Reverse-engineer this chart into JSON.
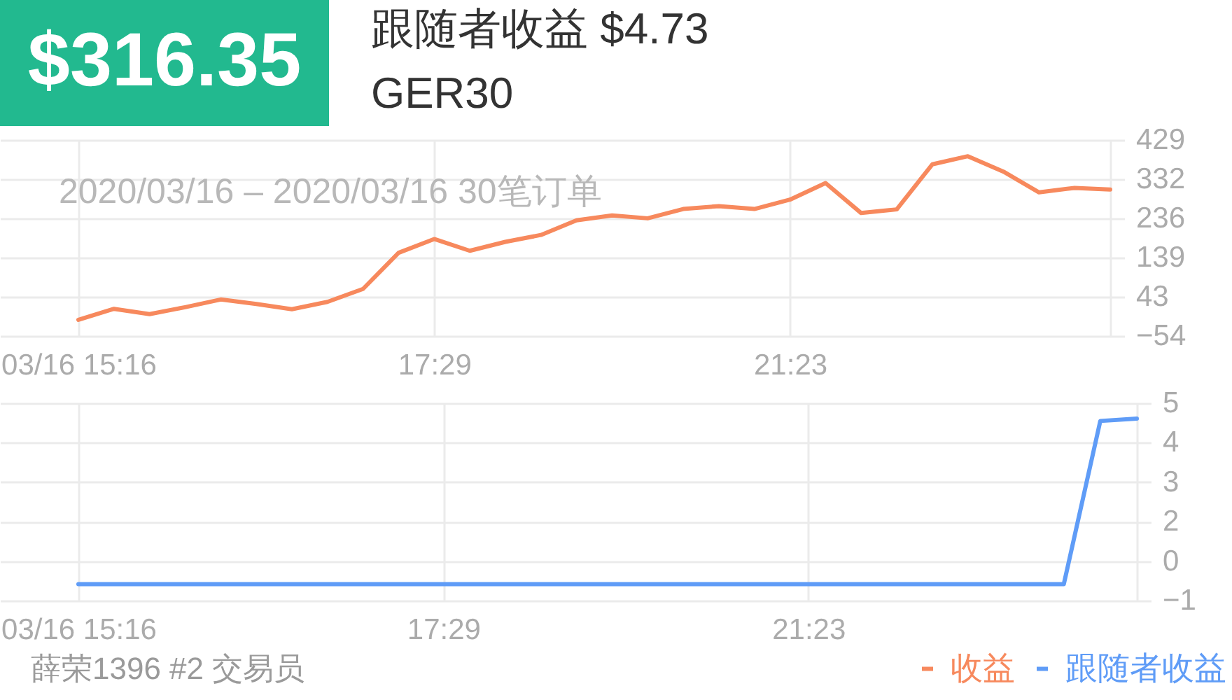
{
  "chart_data": [
    {
      "type": "other",
      "annotations": [
        "$316.35",
        "跟随者收益 $4.73",
        "GER30"
      ]
    },
    {
      "type": "line",
      "categories": [
        "03/16 15:16",
        null,
        null,
        null,
        null,
        null,
        null,
        null,
        null,
        null,
        "17:29",
        null,
        null,
        null,
        null,
        null,
        null,
        null,
        null,
        null,
        "21:23",
        null,
        null,
        null,
        null,
        null,
        null,
        null,
        null,
        null
      ],
      "series": [
        {
          "name": "收益",
          "color": "#f7895d",
          "values": [
            -14,
            13,
            0,
            17,
            36,
            25,
            12,
            30,
            62,
            151,
            185,
            156,
            178,
            195,
            231,
            243,
            236,
            259,
            266,
            259,
            282,
            323,
            249,
            258,
            369,
            389,
            351,
            300,
            311,
            307
          ]
        }
      ],
      "ylim": [
        -54,
        429
      ],
      "yticks": [
        -54,
        43,
        139,
        236,
        332,
        429
      ],
      "grid": true,
      "annotations": [
        "2020/03/16 – 2020/03/16 30笔订单"
      ]
    },
    {
      "type": "line",
      "categories": [
        "03/16 15:16",
        null,
        null,
        null,
        null,
        null,
        null,
        null,
        null,
        null,
        "17:29",
        null,
        null,
        null,
        null,
        null,
        null,
        null,
        null,
        null,
        "21:23",
        null,
        null,
        null,
        null,
        null,
        null,
        null,
        null,
        null
      ],
      "series": [
        {
          "name": "跟随者收益",
          "color": "#5f9cf7",
          "values": [
            -0.3,
            -0.3,
            -0.3,
            -0.3,
            -0.3,
            -0.3,
            -0.3,
            -0.3,
            -0.3,
            -0.3,
            -0.3,
            -0.3,
            -0.3,
            -0.3,
            -0.3,
            -0.3,
            -0.3,
            -0.3,
            -0.3,
            -0.3,
            -0.3,
            -0.3,
            -0.3,
            -0.3,
            -0.3,
            -0.3,
            -0.3,
            -0.3,
            4.66,
            4.73
          ]
        }
      ],
      "ylim": [
        -0.8,
        5.2
      ],
      "yticks": [
        {
          "value": -0.8,
          "label": "−1"
        },
        {
          "value": 0.4,
          "label": "0"
        },
        {
          "value": 1.6,
          "label": "2"
        },
        {
          "value": 2.8,
          "label": "3"
        },
        {
          "value": 4.0,
          "label": "4"
        },
        {
          "value": 5.2,
          "label": "5"
        }
      ],
      "grid": true,
      "legend": "bottom right",
      "annotations": [
        "薛荣1396 #2 交易员"
      ]
    }
  ]
}
